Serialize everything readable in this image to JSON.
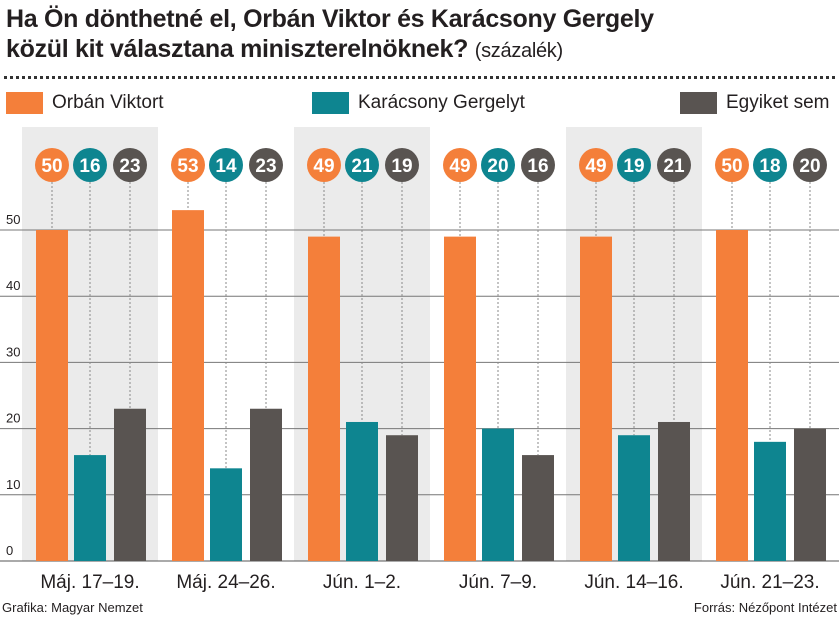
{
  "title": "Ha Ön dönthetné el, Orbán Viktor és Karácsony Gergely közül kit választana miniszterelnöknek?",
  "title_line1": "Ha Ön dönthetné el, Orbán Viktor és Karácsony Gergely",
  "title_line2": "közül kit választana miniszterelnöknek?",
  "unit": "(százalék)",
  "credit": "Grafika: Magyar Nemzet",
  "source": "Forrás: Nézőpont Intézet",
  "chart_data": {
    "type": "bar",
    "categories": [
      "Máj. 17–19.",
      "Máj. 24–26.",
      "Jún. 1–2.",
      "Jún. 7–9.",
      "Jún. 14–16.",
      "Jún. 21–23."
    ],
    "series": [
      {
        "name": "Orbán Viktort",
        "color": "#f47f3a",
        "values": [
          50,
          53,
          49,
          49,
          49,
          50
        ]
      },
      {
        "name": "Karácsony Gergelyt",
        "color": "#0e8590",
        "values": [
          16,
          14,
          21,
          20,
          19,
          18
        ]
      },
      {
        "name": "Egyiket sem",
        "color": "#595451",
        "values": [
          23,
          23,
          19,
          16,
          21,
          20
        ]
      }
    ],
    "yticks": [
      0,
      10,
      20,
      30,
      40,
      50
    ],
    "ylim": [
      0,
      50
    ],
    "legend": "top",
    "grid": true
  }
}
